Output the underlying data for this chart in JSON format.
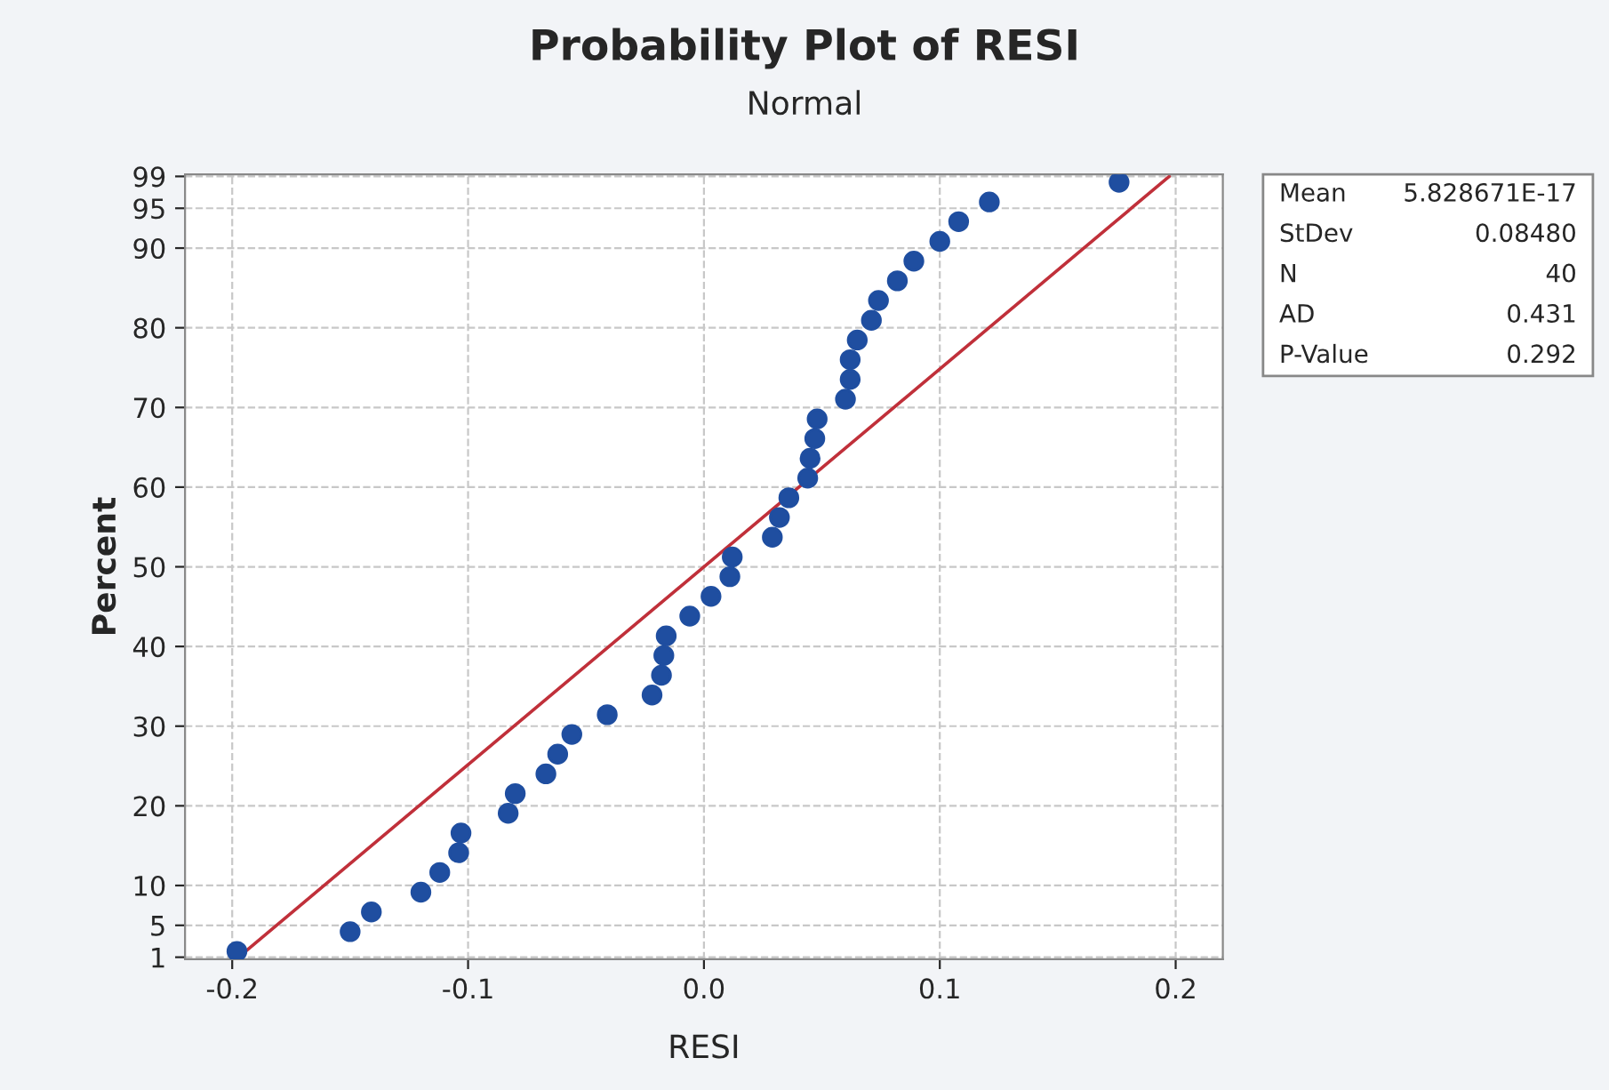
{
  "chart_data": {
    "type": "scatter",
    "title": "Probability Plot of RESI",
    "subtitle": "Normal",
    "xlabel": "RESI",
    "ylabel": "Percent",
    "xlim": [
      -0.22,
      0.22
    ],
    "xticks": [
      -0.2,
      -0.1,
      {
        "value": 0,
        "label": "0.0"
      },
      0.1,
      0.2
    ],
    "ylim": [
      0.75,
      99.25
    ],
    "yticks": [
      1,
      5,
      10,
      20,
      30,
      40,
      50,
      60,
      70,
      80,
      90,
      95,
      99
    ],
    "grid": true,
    "legend": false,
    "marker": "circle",
    "annotations": [
      "Mean",
      "5.828671E-17",
      "StDev",
      "0.08480",
      "N",
      "40",
      "AD",
      "0.431",
      "P-Value",
      "0.292"
    ],
    "series": [
      {
        "type": "scatter",
        "color": "#1f4ea0",
        "x": [
          -0.198,
          -0.15,
          -0.141,
          -0.12,
          -0.112,
          -0.104,
          -0.103,
          -0.083,
          -0.08,
          -0.067,
          -0.062,
          -0.056,
          -0.041,
          -0.022,
          -0.018,
          -0.017,
          -0.016,
          -0.006,
          0.003,
          0.011,
          0.012,
          0.029,
          0.032,
          0.036,
          0.044,
          0.045,
          0.047,
          0.048,
          0.06,
          0.062,
          0.062,
          0.065,
          0.071,
          0.074,
          0.082,
          0.089,
          0.1,
          0.108,
          0.121,
          0.176
        ],
        "values": [
          1.733,
          4.208,
          6.683,
          9.158,
          11.634,
          14.109,
          16.584,
          19.059,
          21.535,
          24.01,
          26.485,
          28.96,
          31.436,
          33.911,
          36.386,
          38.861,
          41.337,
          43.812,
          46.287,
          48.762,
          51.238,
          53.713,
          56.188,
          58.663,
          61.139,
          63.614,
          66.089,
          68.564,
          71.04,
          73.515,
          75.99,
          78.465,
          80.941,
          83.416,
          85.891,
          88.366,
          90.842,
          93.317,
          95.792,
          98.267
        ]
      },
      {
        "type": "line",
        "color": "#c0303a",
        "line_style": "solid",
        "marker": "none",
        "x": [
          -0.1973,
          0.1973
        ],
        "values": [
          1,
          99
        ]
      }
    ]
  }
}
